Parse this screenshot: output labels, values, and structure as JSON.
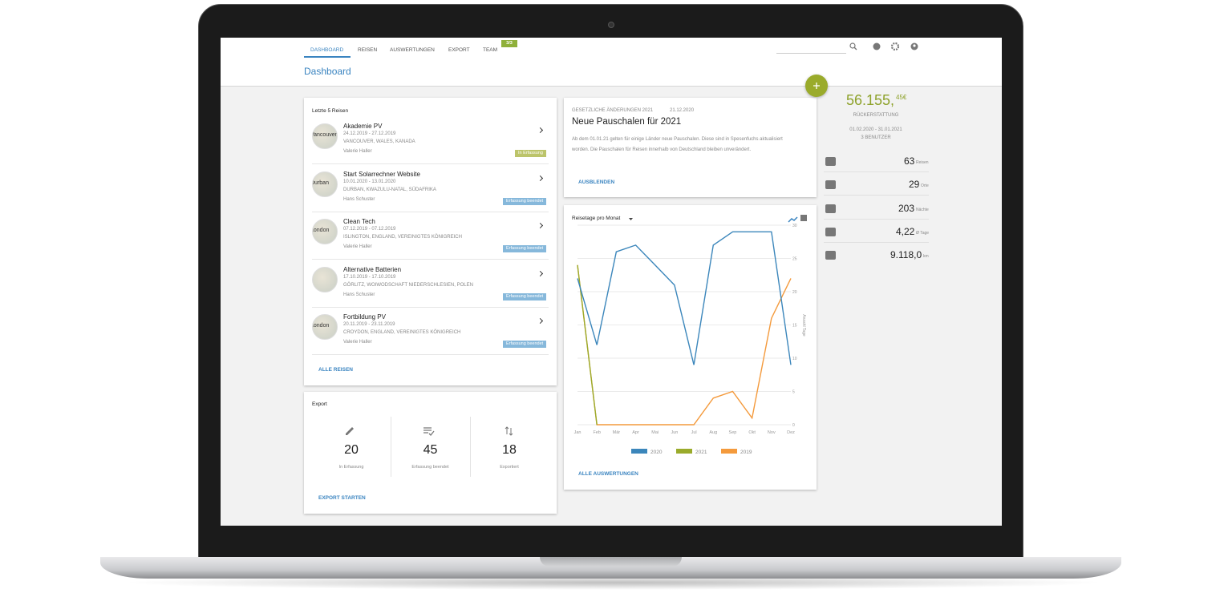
{
  "nav": {
    "tabs": [
      "DASHBOARD",
      "REISEN",
      "AUSWERTUNGEN",
      "EXPORT",
      "TEAM"
    ],
    "team_badge": "3/3"
  },
  "page_title": "Dashboard",
  "recent_trips": {
    "title": "Letzte 5 Reisen",
    "link": "ALLE REISEN",
    "items": [
      {
        "thumb": "Vancouver",
        "name": "Akademie PV",
        "dates": "24.12.2019 - 27.12.2019",
        "location": "VANCOUVER, WALES, KANADA",
        "person": "Valerie Haller",
        "status": "In Erfassung"
      },
      {
        "thumb": "Durban",
        "name": "Start Solarrechner Website",
        "dates": "10.01.2020 - 13.01.2020",
        "location": "DURBAN, KWAZULU-NATAL, SÜDAFRIKA",
        "person": "Hans Schuster",
        "status": "Erfassung beendet"
      },
      {
        "thumb": "London",
        "name": "Clean Tech",
        "dates": "07.12.2019 - 07.12.2019",
        "location": "ISLINGTON, ENGLAND, VEREINIGTES KÖNIGREICH",
        "person": "Valerie Haller",
        "status": "Erfassung beendet"
      },
      {
        "name": "Alternative Batterien",
        "dates": "17.10.2019 - 17.10.2019",
        "location": "GÖRLITZ, WOIWODSCHAFT NIEDERSCHLESIEN, POLEN",
        "person": "Hans Schuster",
        "status": "Erfassung beendet"
      },
      {
        "thumb": "London",
        "name": "Fortbildung PV",
        "dates": "20.11.2019 - 23.11.2019",
        "location": "CROYDON, ENGLAND, VEREINIGTES KÖNIGREICH",
        "person": "Valerie Haller",
        "status": "Erfassung beendet"
      }
    ]
  },
  "export": {
    "title": "Export",
    "link": "EXPORT STARTEN",
    "items": [
      {
        "value": 20,
        "label": "In Erfassung"
      },
      {
        "value": 45,
        "label": "Erfassung beendet"
      },
      {
        "value": 18,
        "label": "Exportiert"
      }
    ]
  },
  "news": {
    "category": "GESETZLICHE ÄNDERUNGEN 2021",
    "date": "21.12.2020",
    "title": "Neue Pauschalen für 2021",
    "text": "Ab dem 01.01.21 gelten für einige Länder neue Pauschalen. Diese sind in Spesenfuchs aktualisiert worden. Die Pauschalen für Reisen innerhalb von Deutschland bleiben unverändert.",
    "link": "AUSBLENDEN"
  },
  "chart_link": "ALLE AUSWERTUNGEN",
  "chart_data": {
    "type": "line",
    "title": "Reisetage pro Monat",
    "categories": [
      "Jan",
      "Feb",
      "Mär",
      "Apr",
      "Mai",
      "Jun",
      "Jul",
      "Aug",
      "Sep",
      "Okt",
      "Nov",
      "Dez"
    ],
    "series": [
      {
        "name": "2020",
        "color": "#3b86bb",
        "values": [
          22,
          12,
          26,
          27,
          24,
          21,
          9,
          27,
          29,
          29,
          29,
          9
        ]
      },
      {
        "name": "2021",
        "color": "#9aab2b",
        "values": [
          24,
          0,
          null,
          null,
          null,
          null,
          null,
          null,
          null,
          null,
          null,
          null
        ]
      },
      {
        "name": "2019",
        "color": "#f49a3c",
        "values": [
          24,
          0,
          0,
          0,
          0,
          0,
          0,
          4,
          5,
          1,
          16,
          22
        ]
      }
    ],
    "ylim": [
      0,
      30
    ],
    "yticks": [
      0,
      5,
      10,
      15,
      20,
      25,
      30
    ],
    "y_label": "Anzahl Tage",
    "grid": true
  },
  "refund": {
    "amount": "56.155,",
    "cents": "45€",
    "label": "RÜCKERSTATTUNG",
    "period": "01.02.2020 - 31.01.2021",
    "users": "3 BENUTZER"
  },
  "stats": [
    {
      "value": "63",
      "unit": "Reisen"
    },
    {
      "value": "29",
      "unit": "Orte"
    },
    {
      "value": "203",
      "unit": "Nächte"
    },
    {
      "value": "4,22",
      "unit": "Ø Tage"
    },
    {
      "value": "9.118,0",
      "unit": "km"
    }
  ]
}
